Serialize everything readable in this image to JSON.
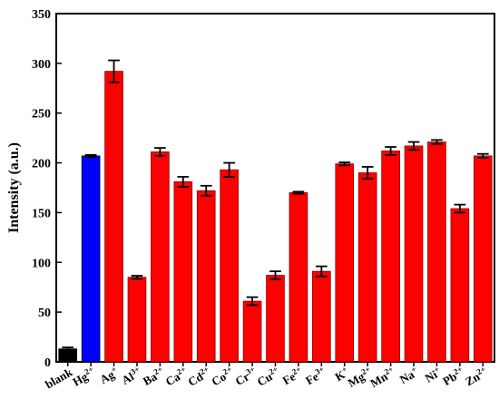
{
  "chart_data": {
    "type": "bar",
    "title": "",
    "xlabel": "",
    "ylabel": "Intensity (a.u.)",
    "ylim": [
      0,
      350
    ],
    "yticks": [
      "0",
      "50",
      "100",
      "150",
      "200",
      "250",
      "300",
      "350"
    ],
    "categories": [
      {
        "base": "blank",
        "sup": ""
      },
      {
        "base": "Hg",
        "sup": "2+"
      },
      {
        "base": "Ag",
        "sup": "+"
      },
      {
        "base": "Al",
        "sup": "3+"
      },
      {
        "base": "Ba",
        "sup": "2+"
      },
      {
        "base": "Ca",
        "sup": "2+"
      },
      {
        "base": "Cd",
        "sup": "2+"
      },
      {
        "base": "Co",
        "sup": "2+"
      },
      {
        "base": "Cr",
        "sup": "3+"
      },
      {
        "base": "Cu",
        "sup": "2+"
      },
      {
        "base": "Fe",
        "sup": "2+"
      },
      {
        "base": "Fe",
        "sup": "3+"
      },
      {
        "base": "K",
        "sup": "+"
      },
      {
        "base": "Mg",
        "sup": "2+"
      },
      {
        "base": "Mn",
        "sup": "2+"
      },
      {
        "base": "Na",
        "sup": "+"
      },
      {
        "base": "Ni",
        "sup": "+"
      },
      {
        "base": "Pb",
        "sup": "2+"
      },
      {
        "base": "Zn",
        "sup": "2+"
      }
    ],
    "values": [
      13,
      207,
      292,
      85,
      211,
      181,
      172,
      193,
      61,
      87,
      170,
      91,
      199,
      190,
      212,
      217,
      221,
      154,
      207
    ],
    "errors": [
      1.5,
      1,
      11,
      1.5,
      4,
      5,
      5,
      7,
      4,
      4,
      1,
      5,
      1.5,
      6,
      4,
      4,
      2,
      4,
      2
    ],
    "colors": [
      "#000000",
      "#0000ff",
      "#ff0000",
      "#ff0000",
      "#ff0000",
      "#ff0000",
      "#ff0000",
      "#ff0000",
      "#ff0000",
      "#ff0000",
      "#ff0000",
      "#ff0000",
      "#ff0000",
      "#ff0000",
      "#ff0000",
      "#ff0000",
      "#ff0000",
      "#ff0000",
      "#ff0000"
    ],
    "error_bar_color": "#000000",
    "bar_edge_color": "#8b0000",
    "grid": false,
    "legend": "none"
  }
}
